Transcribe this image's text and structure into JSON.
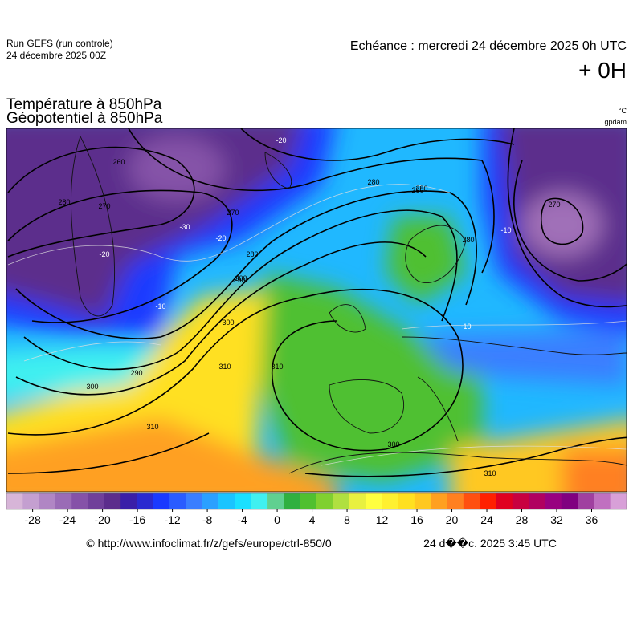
{
  "header": {
    "run": "Run GEFS (run controle)",
    "run_date": "24 décembre 2025 00Z",
    "echeance": "Echéance : mercredi 24 décembre 2025 0h UTC",
    "offset": "+ 0H"
  },
  "titles": {
    "line1": "Température à 850hPa",
    "line2": "Géopotentiel à 850hPa",
    "unit1": "°C",
    "unit2": "gpdam"
  },
  "map": {
    "contour_labels": [
      "260",
      "280",
      "270",
      "270",
      "280",
      "290",
      "300",
      "310",
      "290",
      "300",
      "310",
      "310",
      "300",
      "310",
      "280",
      "290",
      "280",
      "290",
      "300",
      "270",
      "-20",
      "-20",
      "-30",
      "-10",
      "-10",
      "-10",
      "-20"
    ]
  },
  "colorbar": {
    "clim": [
      -31,
      40
    ],
    "ticks": [
      -28,
      -24,
      -20,
      -16,
      -12,
      -8,
      -4,
      0,
      4,
      8,
      12,
      16,
      20,
      24,
      28,
      32,
      36
    ],
    "colors": [
      "#d7b5d8",
      "#c49fd0",
      "#b086c4",
      "#9a6cb6",
      "#8552a8",
      "#70409a",
      "#5c2d8c",
      "#3a1fa8",
      "#2a2ad0",
      "#1a3aff",
      "#2a5cff",
      "#3a7eff",
      "#2aa0ff",
      "#1ac4ff",
      "#1ae0ff",
      "#40f0f0",
      "#60d090",
      "#30b040",
      "#50c030",
      "#80d030",
      "#b0e040",
      "#e8f040",
      "#ffff40",
      "#fff030",
      "#ffe020",
      "#ffc820",
      "#ffa020",
      "#ff8020",
      "#ff5010",
      "#ff2000",
      "#e00020",
      "#c80040",
      "#b00060",
      "#980080",
      "#800080",
      "#a040a0",
      "#c070c0",
      "#d8a0d8"
    ]
  },
  "footer": {
    "url": "© http://www.infoclimat.fr/z/gefs/europe/ctrl-850/0",
    "stamp": "24 d��c. 2025  3:45 UTC"
  }
}
